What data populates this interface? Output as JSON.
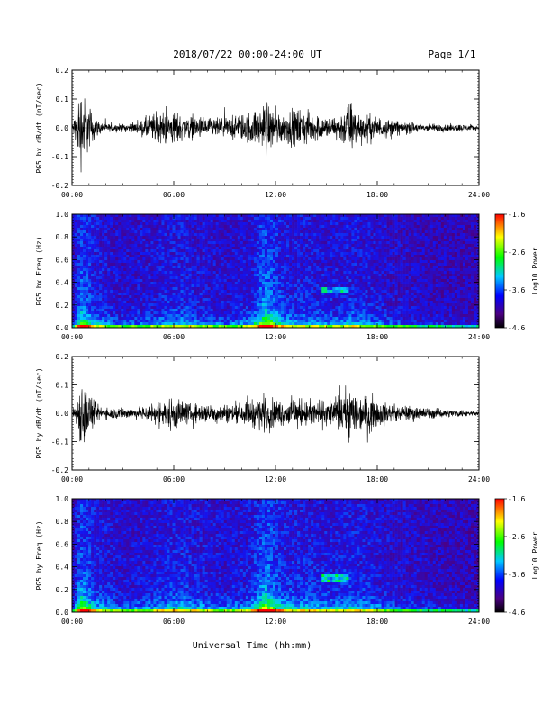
{
  "header": {
    "title": "2018/07/22  00:00-24:00 UT",
    "page": "Page 1/1"
  },
  "chart_data": [
    {
      "type": "line",
      "title": "",
      "ylabel": "PG5 bx dB/dt (nT/sec)",
      "xlabel": "",
      "x_ticks": [
        "00:00",
        "06:00",
        "12:00",
        "18:00",
        "24:00"
      ],
      "xlim_hours": [
        0,
        24
      ],
      "ylim": [
        -0.2,
        0.2
      ],
      "y_ticks": [
        "0.2",
        "0.1",
        "0.0",
        "-0.1",
        "-0.2"
      ],
      "series": [
        {
          "amplitude_envelope": {
            "x_hours": [
              0,
              0.3,
              0.5,
              0.8,
              1.1,
              1.5,
              2,
              3,
              4,
              4.5,
              5.2,
              6,
              6.5,
              7,
              8,
              9,
              10,
              10.5,
              11,
              11.4,
              12,
              12.5,
              13,
              13.5,
              14,
              14.5,
              15,
              15.5,
              16,
              16.3,
              16.7,
              17,
              17.5,
              18,
              18.5,
              19,
              20,
              21,
              22,
              23,
              24
            ],
            "amplitude": [
              0.01,
              0.12,
              0.22,
              0.15,
              0.1,
              0.04,
              0.02,
              0.02,
              0.03,
              0.07,
              0.08,
              0.09,
              0.07,
              0.06,
              0.05,
              0.05,
              0.07,
              0.09,
              0.08,
              0.15,
              0.09,
              0.08,
              0.09,
              0.1,
              0.08,
              0.07,
              0.06,
              0.06,
              0.09,
              0.14,
              0.11,
              0.08,
              0.07,
              0.06,
              0.05,
              0.04,
              0.03,
              0.02,
              0.02,
              0.02,
              0.01
            ]
          }
        }
      ]
    },
    {
      "type": "heatmap",
      "ylabel": "PG5 bx Freq (Hz)",
      "x_ticks": [
        "00:00",
        "06:00",
        "12:00",
        "18:00",
        "24:00"
      ],
      "xlim_hours": [
        0,
        24
      ],
      "ylim": [
        0.0,
        1.0
      ],
      "y_ticks": [
        "1.0",
        "0.8",
        "0.6",
        "0.4",
        "0.2",
        "0.0"
      ],
      "colorbar": {
        "label": "Log10 Power",
        "range": [
          -4.6,
          -1.6
        ],
        "ticks": [
          "-1.6",
          "-2.6",
          "-3.6",
          "-4.6"
        ]
      },
      "features": {
        "activity_x_hours": [
          0,
          0.5,
          1.5,
          3,
          4.5,
          5.5,
          6.5,
          8,
          9,
          10.5,
          11.4,
          12.5,
          14,
          15.5,
          16.5,
          17.5,
          19,
          21,
          24
        ],
        "activity_level": [
          0.1,
          0.9,
          0.5,
          0.3,
          0.4,
          0.5,
          0.55,
          0.4,
          0.35,
          0.45,
          1.0,
          0.55,
          0.5,
          0.45,
          0.55,
          0.45,
          0.3,
          0.2,
          0.1
        ],
        "narrowband_emission": {
          "x_hours": [
            14.8,
            16.3
          ],
          "freq_hz": [
            0.3,
            0.35
          ]
        }
      }
    },
    {
      "type": "line",
      "ylabel": "PG5 by dB/dt (nT/sec)",
      "x_ticks": [
        "00:00",
        "06:00",
        "12:00",
        "18:00",
        "24:00"
      ],
      "xlim_hours": [
        0,
        24
      ],
      "ylim": [
        -0.2,
        0.2
      ],
      "y_ticks": [
        "0.2",
        "0.1",
        "0.0",
        "-0.1",
        "-0.2"
      ],
      "series": [
        {
          "amplitude_envelope": {
            "x_hours": [
              0,
              0.3,
              0.6,
              0.9,
              1.2,
              1.6,
              2,
              3,
              4,
              4.5,
              5.5,
              6,
              6.5,
              7,
              8,
              9,
              10,
              10.5,
              11,
              11.4,
              12,
              12.5,
              13,
              14,
              15,
              15.5,
              16,
              16.4,
              16.8,
              17.2,
              17.6,
              18,
              19,
              20,
              21,
              22,
              23,
              24
            ],
            "amplitude": [
              0.01,
              0.08,
              0.2,
              0.13,
              0.08,
              0.04,
              0.03,
              0.03,
              0.03,
              0.05,
              0.07,
              0.1,
              0.07,
              0.05,
              0.05,
              0.05,
              0.05,
              0.07,
              0.08,
              0.1,
              0.07,
              0.07,
              0.08,
              0.07,
              0.07,
              0.08,
              0.1,
              0.14,
              0.12,
              0.09,
              0.1,
              0.07,
              0.04,
              0.04,
              0.03,
              0.02,
              0.02,
              0.01
            ]
          }
        }
      ]
    },
    {
      "type": "heatmap",
      "ylabel": "PG5 by Freq (Hz)",
      "x_ticks": [
        "00:00",
        "06:00",
        "12:00",
        "18:00",
        "24:00"
      ],
      "xlim_hours": [
        0,
        24
      ],
      "ylim": [
        0.0,
        1.0
      ],
      "y_ticks": [
        "1.0",
        "0.8",
        "0.6",
        "0.4",
        "0.2",
        "0.0"
      ],
      "colorbar": {
        "label": "Log10 Power",
        "range": [
          -4.6,
          -1.6
        ],
        "ticks": [
          "-1.6",
          "-2.6",
          "-3.6",
          "-4.6"
        ]
      },
      "features": {
        "activity_x_hours": [
          0,
          0.5,
          1.5,
          3,
          4.5,
          5.5,
          6.5,
          8,
          9,
          10.5,
          11.4,
          12.5,
          14,
          15.5,
          16.5,
          17.5,
          19,
          21,
          24
        ],
        "activity_level": [
          0.1,
          0.95,
          0.55,
          0.35,
          0.45,
          0.55,
          0.6,
          0.45,
          0.4,
          0.5,
          1.0,
          0.6,
          0.55,
          0.5,
          0.6,
          0.5,
          0.35,
          0.25,
          0.1
        ],
        "narrowband_emission": {
          "x_hours": [
            14.8,
            16.3
          ],
          "freq_hz": [
            0.27,
            0.33
          ]
        }
      }
    }
  ],
  "footer": {
    "xtitle": "Universal Time (hh:mm)"
  }
}
